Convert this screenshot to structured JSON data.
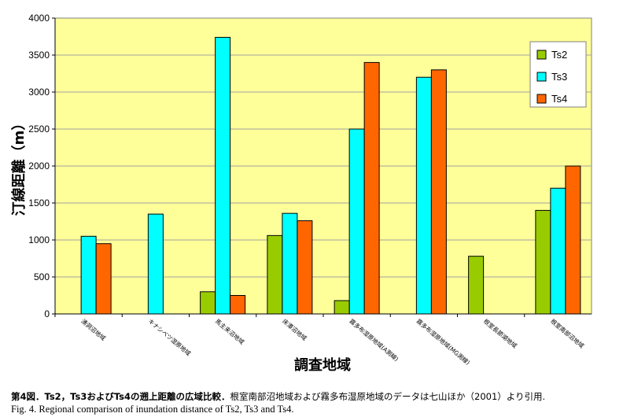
{
  "chart_data": {
    "type": "bar",
    "categories": [
      "湧洞沼地域",
      "キナシベツ湿原地域",
      "馬主来沼地域",
      "床潭沼地域",
      "霧多布湿原地域(A測線)",
      "霧多布湿原地域(MG測線)",
      "根室長節湖地域",
      "根室南部沼地域"
    ],
    "series": [
      {
        "name": "Ts2",
        "color": "#99cc00",
        "values": [
          null,
          null,
          300,
          1060,
          180,
          null,
          780,
          1400
        ]
      },
      {
        "name": "Ts3",
        "color": "#00ffff",
        "values": [
          1050,
          1350,
          3740,
          1360,
          2500,
          3200,
          null,
          1700
        ]
      },
      {
        "name": "Ts4",
        "color": "#ff6600",
        "values": [
          950,
          null,
          250,
          1260,
          3400,
          3300,
          null,
          2000
        ]
      }
    ],
    "title": "",
    "xlabel": "調査地域",
    "ylabel": "汀線距離（m）",
    "ylim": [
      0,
      4000
    ],
    "yticks": [
      "0",
      "500",
      "1000",
      "1500",
      "2000",
      "2500",
      "3000",
      "3500",
      "4000"
    ],
    "plot_background": "#ffff99",
    "grid": true,
    "legend_position": "top-right"
  },
  "caption": {
    "line1_bold": "第4図．Ts2，Ts3およびTs4の遡上距離の広域比較．",
    "line1_rest": "根室南部沼地域および霧多布湿原地域のデータは七山ほか（2001）より引用.",
    "line2": "Fig. 4. Regional comparison of inundation distance of Ts2, Ts3 and Ts4."
  }
}
